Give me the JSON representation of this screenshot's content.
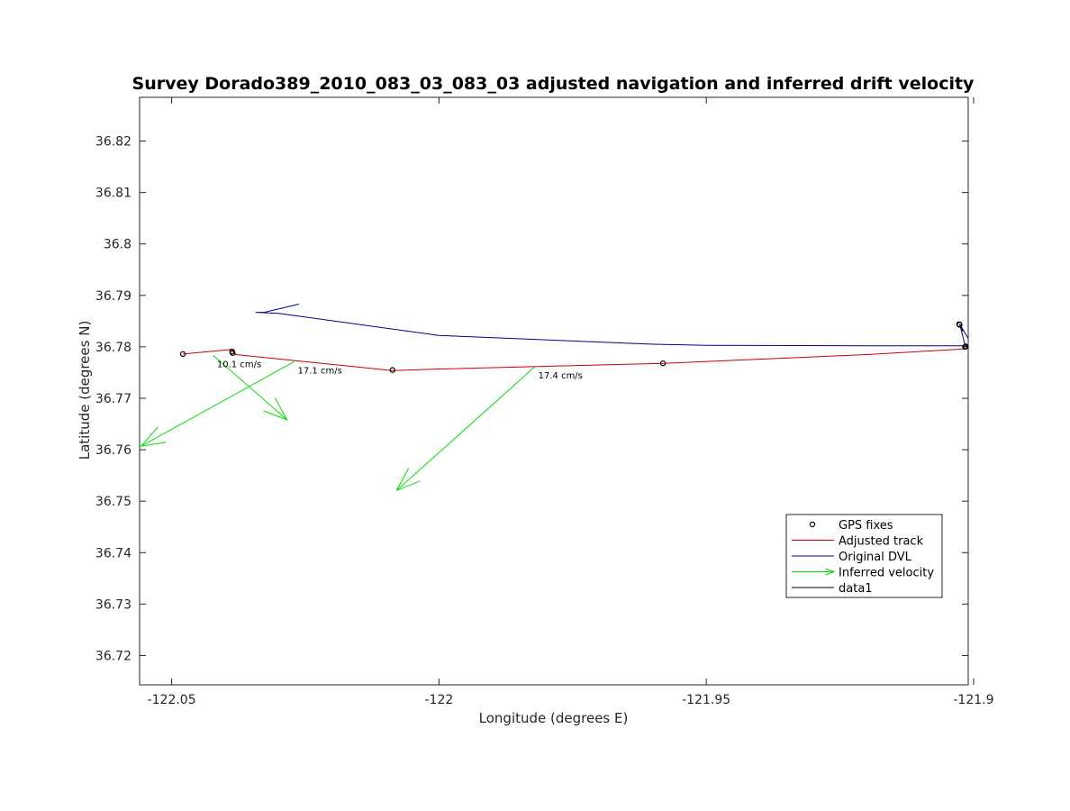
{
  "chart_data": {
    "type": "line",
    "title": "Survey Dorado389_2010_083_03_083_03 adjusted navigation and inferred drift velocity",
    "xlabel": "Longitude (degrees E)",
    "ylabel": "Latitude (degrees N)",
    "xlim": [
      -122.056,
      -121.901
    ],
    "ylim": [
      36.7143,
      36.8285
    ],
    "x_ticks": [
      -122.05,
      -122,
      -121.95,
      -121.9
    ],
    "x_tick_labels": [
      "-122.05",
      "-122",
      "-121.95",
      "-121.9"
    ],
    "y_ticks": [
      36.72,
      36.73,
      36.74,
      36.75,
      36.76,
      36.77,
      36.78,
      36.79,
      36.8,
      36.81,
      36.82
    ],
    "y_tick_labels": [
      "36.72",
      "36.73",
      "36.74",
      "36.75",
      "36.76",
      "36.77",
      "36.78",
      "36.79",
      "36.8",
      "36.81",
      "36.82"
    ],
    "grid": false,
    "legend_position": "bottom-right",
    "legend": [
      {
        "label": "GPS fixes",
        "style": "marker",
        "color": "#000000"
      },
      {
        "label": "Adjusted track",
        "style": "line",
        "color": "#cc0000"
      },
      {
        "label": "Original DVL",
        "style": "line",
        "color": "#00008b"
      },
      {
        "label": "Inferred velocity",
        "style": "arrow",
        "color": "#00e000"
      },
      {
        "label": "data1",
        "style": "line",
        "color": "#000000"
      }
    ],
    "series": [
      {
        "name": "GPS fixes",
        "type": "marker",
        "color": "#000000",
        "points": [
          [
            -122.0479,
            36.7786
          ],
          [
            -122.0387,
            36.7791
          ],
          [
            -122.0386,
            36.7788
          ],
          [
            -122.0087,
            36.7755
          ],
          [
            -121.9581,
            36.7768
          ],
          [
            -121.9027,
            36.7844
          ],
          [
            -121.9026,
            36.7843
          ],
          [
            -121.9016,
            36.78
          ],
          [
            -121.9015,
            36.7801
          ]
        ]
      },
      {
        "name": "Adjusted track",
        "type": "line",
        "color": "#cc0000",
        "points": [
          [
            -122.0479,
            36.7786
          ],
          [
            -122.0389,
            36.7795
          ],
          [
            -122.038,
            36.7785
          ],
          [
            -122.0087,
            36.7754
          ],
          [
            -122.0,
            36.7757
          ],
          [
            -121.958,
            36.7768
          ],
          [
            -121.92,
            36.7785
          ],
          [
            -121.9,
            36.7797
          ]
        ]
      },
      {
        "name": "Original DVL",
        "type": "line",
        "color": "#00008b",
        "points": [
          [
            -122.0262,
            36.7883
          ],
          [
            -122.0327,
            36.7867
          ],
          [
            -122.0343,
            36.7867
          ],
          [
            -122.03,
            36.7865
          ],
          [
            -122.0,
            36.7822
          ],
          [
            -121.96,
            36.7805
          ],
          [
            -121.95,
            36.7803
          ],
          [
            -121.92,
            36.7802
          ],
          [
            -121.9014,
            36.7802
          ],
          [
            -121.9,
            36.78
          ],
          [
            -121.9026,
            36.7844
          ],
          [
            -121.9015,
            36.78
          ],
          [
            -121.9003,
            36.7802
          ]
        ]
      },
      {
        "name": "data1",
        "type": "line",
        "color": "#000000",
        "points": [
          [
            -121.9025,
            36.7843
          ],
          [
            -121.902,
            36.783
          ]
        ]
      }
    ],
    "velocity_arrows": [
      {
        "x0": -122.0422,
        "y0": 36.7783,
        "x1": -122.0284,
        "y1": 36.7658,
        "label": "10.1 cm/s"
      },
      {
        "x0": -122.0271,
        "y0": 36.7771,
        "x1": -122.0557,
        "y1": 36.7607,
        "label": "17.1 cm/s"
      },
      {
        "x0": -121.9821,
        "y0": 36.7761,
        "x1": -122.0079,
        "y1": 36.7521,
        "label": "17.4 cm/s"
      }
    ]
  }
}
